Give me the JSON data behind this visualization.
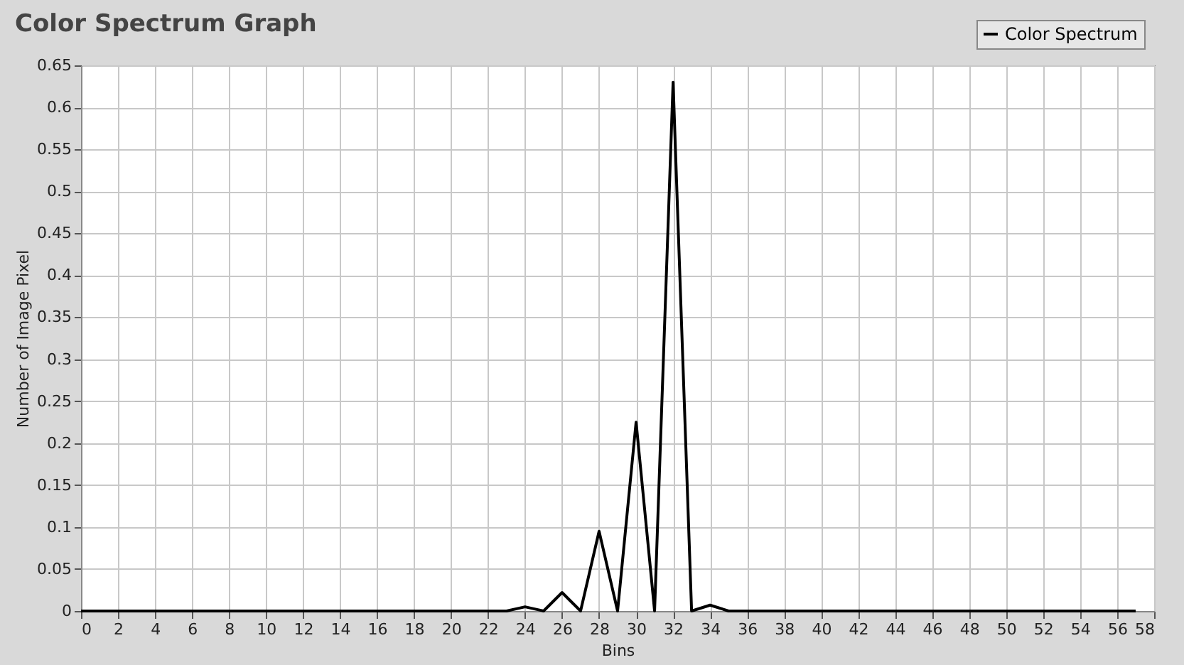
{
  "chart_data": {
    "type": "line",
    "title": "Color Spectrum Graph",
    "xlabel": "Bins",
    "ylabel": "Number of Image Pixel",
    "x": [
      0,
      1,
      2,
      3,
      4,
      5,
      6,
      7,
      8,
      9,
      10,
      11,
      12,
      13,
      14,
      15,
      16,
      17,
      18,
      19,
      20,
      21,
      22,
      23,
      24,
      25,
      26,
      27,
      28,
      29,
      30,
      31,
      32,
      33,
      34,
      35,
      36,
      37,
      38,
      39,
      40,
      41,
      42,
      43,
      44,
      45,
      46,
      47,
      48,
      49,
      50,
      51,
      52,
      53,
      54,
      55,
      56,
      57
    ],
    "series": [
      {
        "name": "Color Spectrum",
        "color": "#000000",
        "values": [
          0,
          0,
          0,
          0,
          0,
          0,
          0,
          0,
          0,
          0,
          0,
          0,
          0,
          0,
          0,
          0,
          0,
          0,
          0,
          0,
          0,
          0,
          0,
          0,
          0.005,
          0,
          0.022,
          0,
          0.095,
          0,
          0.225,
          0,
          0.63,
          0,
          0.007,
          0,
          0,
          0,
          0,
          0,
          0,
          0,
          0,
          0,
          0,
          0,
          0,
          0,
          0,
          0,
          0,
          0,
          0,
          0,
          0,
          0,
          0,
          0
        ]
      }
    ],
    "xlim": [
      0,
      58
    ],
    "xticks": [
      0,
      2,
      4,
      6,
      8,
      10,
      12,
      14,
      16,
      18,
      20,
      22,
      24,
      26,
      28,
      30,
      32,
      34,
      36,
      38,
      40,
      42,
      44,
      46,
      48,
      50,
      52,
      54,
      56,
      58
    ],
    "ylim": [
      0,
      0.65
    ],
    "yticks": [
      0,
      0.05,
      0.1,
      0.15,
      0.2,
      0.25,
      0.3,
      0.35,
      0.4,
      0.45,
      0.5,
      0.55,
      0.6,
      0.65
    ],
    "grid": true,
    "legend": "top right",
    "line_style": "solid",
    "marker": "none"
  }
}
